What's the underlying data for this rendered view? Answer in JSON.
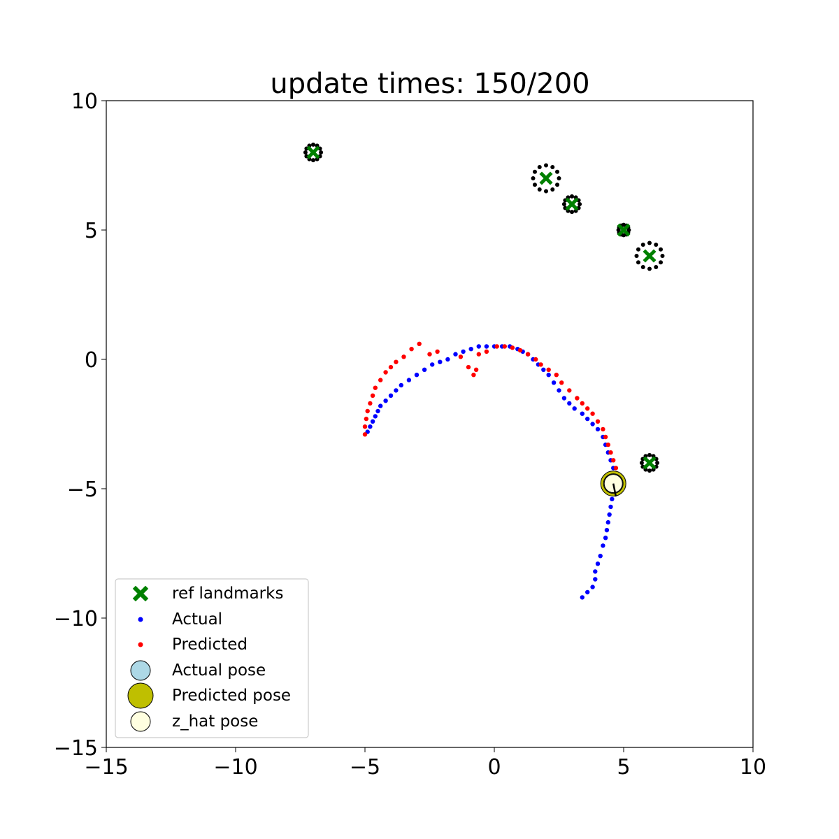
{
  "chart_data": {
    "type": "scatter",
    "title": "update times: 150/200",
    "xlabel": "",
    "ylabel": "",
    "xlim": [
      -15,
      10
    ],
    "ylim": [
      -15,
      10
    ],
    "xticks": [
      -15,
      -10,
      -5,
      0,
      5,
      10
    ],
    "yticks": [
      -15,
      -10,
      -5,
      0,
      5,
      10
    ],
    "xtick_labels": [
      "−15",
      "−10",
      "−5",
      "0",
      "5",
      "10"
    ],
    "ytick_labels": [
      "−15",
      "−10",
      "−5",
      "0",
      "5",
      "10"
    ],
    "grid": false,
    "legend_position": "lower-left",
    "colors": {
      "landmark": "#008000",
      "actual": "#0000ff",
      "predicted": "#ff0000",
      "actual_pose": "#add8e6",
      "predicted_pose": "#bfbf00",
      "zhat_pose": "#ffffe0",
      "landmark_ring": "#000000"
    },
    "landmarks": [
      {
        "x": -7,
        "y": 8,
        "ring": 0.3
      },
      {
        "x": 2,
        "y": 7,
        "ring": 0.5
      },
      {
        "x": 3,
        "y": 6,
        "ring": 0.3
      },
      {
        "x": 5,
        "y": 5,
        "ring": 0.2
      },
      {
        "x": 6,
        "y": 4,
        "ring": 0.5
      },
      {
        "x": 6,
        "y": -4,
        "ring": 0.3
      }
    ],
    "actual_path": [
      [
        3.4,
        -9.2
      ],
      [
        3.6,
        -9.0
      ],
      [
        3.8,
        -8.8
      ],
      [
        3.9,
        -8.5
      ],
      [
        3.9,
        -8.2
      ],
      [
        4.0,
        -7.9
      ],
      [
        4.1,
        -7.6
      ],
      [
        4.2,
        -7.2
      ],
      [
        4.3,
        -6.9
      ],
      [
        4.35,
        -6.6
      ],
      [
        4.4,
        -6.3
      ],
      [
        4.45,
        -6.0
      ],
      [
        4.5,
        -5.7
      ],
      [
        4.55,
        -5.4
      ],
      [
        4.6,
        -5.1
      ],
      [
        4.65,
        -4.8
      ],
      [
        4.7,
        -4.5
      ],
      [
        4.6,
        -4.2
      ],
      [
        4.5,
        -3.9
      ],
      [
        4.4,
        -3.6
      ],
      [
        4.3,
        -3.3
      ],
      [
        4.2,
        -3.0
      ],
      [
        4.0,
        -2.7
      ],
      [
        3.8,
        -2.5
      ],
      [
        3.6,
        -2.3
      ],
      [
        3.4,
        -2.1
      ],
      [
        3.1,
        -1.9
      ],
      [
        2.9,
        -1.7
      ],
      [
        2.7,
        -1.5
      ],
      [
        2.5,
        -1.2
      ],
      [
        2.3,
        -0.9
      ],
      [
        2.1,
        -0.6
      ],
      [
        1.9,
        -0.4
      ],
      [
        1.7,
        -0.2
      ],
      [
        1.5,
        0.0
      ],
      [
        1.3,
        0.2
      ],
      [
        1.1,
        0.3
      ],
      [
        0.9,
        0.4
      ],
      [
        0.6,
        0.5
      ],
      [
        0.3,
        0.5
      ],
      [
        0.0,
        0.5
      ],
      [
        -0.3,
        0.5
      ],
      [
        -0.6,
        0.5
      ],
      [
        -0.9,
        0.4
      ],
      [
        -1.2,
        0.3
      ],
      [
        -1.5,
        0.2
      ],
      [
        -1.8,
        0.0
      ],
      [
        -2.1,
        -0.1
      ],
      [
        -2.4,
        -0.2
      ],
      [
        -2.7,
        -0.4
      ],
      [
        -3.0,
        -0.6
      ],
      [
        -3.3,
        -0.8
      ],
      [
        -3.6,
        -1.0
      ],
      [
        -3.8,
        -1.2
      ],
      [
        -4.0,
        -1.4
      ],
      [
        -4.2,
        -1.6
      ],
      [
        -4.4,
        -1.8
      ],
      [
        -4.5,
        -2.0
      ],
      [
        -4.6,
        -2.2
      ],
      [
        -4.7,
        -2.4
      ],
      [
        -4.8,
        -2.6
      ],
      [
        -4.9,
        -2.8
      ]
    ],
    "predicted_path": [
      [
        4.7,
        -4.2
      ],
      [
        4.6,
        -3.9
      ],
      [
        4.5,
        -3.6
      ],
      [
        4.4,
        -3.3
      ],
      [
        4.3,
        -3.0
      ],
      [
        4.2,
        -2.7
      ],
      [
        4.0,
        -2.4
      ],
      [
        3.8,
        -2.1
      ],
      [
        3.6,
        -1.9
      ],
      [
        3.4,
        -1.7
      ],
      [
        3.2,
        -1.5
      ],
      [
        2.9,
        -1.2
      ],
      [
        2.6,
        -0.9
      ],
      [
        2.4,
        -0.6
      ],
      [
        2.1,
        -0.4
      ],
      [
        1.8,
        -0.2
      ],
      [
        1.6,
        0.0
      ],
      [
        1.3,
        0.2
      ],
      [
        1.0,
        0.35
      ],
      [
        0.7,
        0.45
      ],
      [
        0.4,
        0.5
      ],
      [
        0.1,
        0.5
      ],
      [
        -0.3,
        0.3
      ],
      [
        -0.6,
        0.2
      ],
      [
        -0.7,
        -0.4
      ],
      [
        -0.8,
        -0.6
      ],
      [
        -1.0,
        -0.3
      ],
      [
        -1.3,
        0.1
      ],
      [
        -2.2,
        0.3
      ],
      [
        -2.5,
        0.2
      ],
      [
        -2.9,
        0.6
      ],
      [
        -3.2,
        0.4
      ],
      [
        -3.5,
        0.1
      ],
      [
        -3.8,
        -0.1
      ],
      [
        -4.0,
        -0.3
      ],
      [
        -4.2,
        -0.5
      ],
      [
        -4.4,
        -0.8
      ],
      [
        -4.6,
        -1.1
      ],
      [
        -4.7,
        -1.4
      ],
      [
        -4.8,
        -1.7
      ],
      [
        -4.9,
        -2.0
      ],
      [
        -4.95,
        -2.3
      ],
      [
        -5.0,
        -2.6
      ],
      [
        -5.0,
        -2.9
      ]
    ],
    "actual_pose": {
      "x": 4.6,
      "y": -4.8
    },
    "predicted_pose": {
      "x": 4.6,
      "y": -4.8
    },
    "zhat_pose": {
      "x": 4.6,
      "y": -4.8
    },
    "heading_line": [
      [
        4.6,
        -4.8
      ],
      [
        4.7,
        -5.3
      ]
    ],
    "legend": [
      {
        "label": "ref landmarks",
        "marker": "x"
      },
      {
        "label": "Actual",
        "marker": "dot-blue"
      },
      {
        "label": "Predicted",
        "marker": "dot-red"
      },
      {
        "label": "Actual pose",
        "marker": "circle-lightblue"
      },
      {
        "label": "Predicted pose",
        "marker": "circle-olive"
      },
      {
        "label": "z_hat pose",
        "marker": "circle-lightyellow"
      }
    ]
  }
}
